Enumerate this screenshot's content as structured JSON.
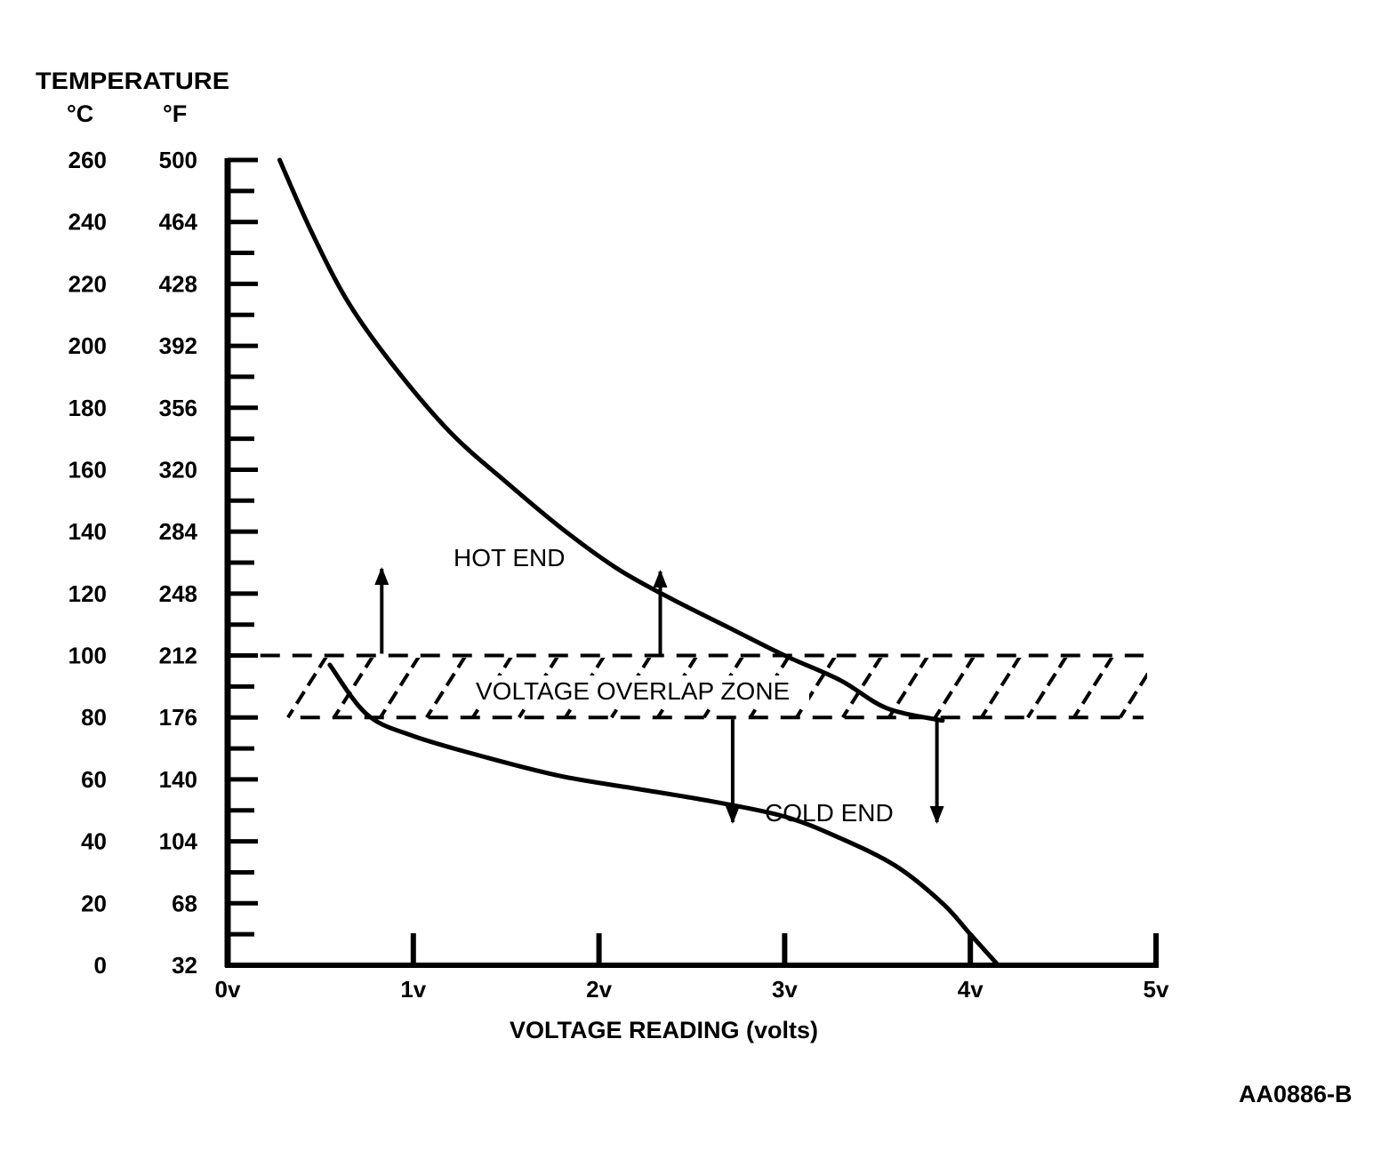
{
  "chart_data": {
    "type": "line",
    "y_axis_title": "TEMPERATURE",
    "y_unit_celsius": "°C",
    "y_unit_fahrenheit": "°F",
    "y_ticks_celsius": [
      "260",
      "240",
      "220",
      "200",
      "180",
      "160",
      "140",
      "120",
      "100",
      "80",
      "60",
      "40",
      "20",
      "0"
    ],
    "y_ticks_fahrenheit": [
      "500",
      "464",
      "428",
      "392",
      "356",
      "320",
      "284",
      "248",
      "212",
      "176",
      "140",
      "104",
      "68",
      "32"
    ],
    "xlabel": "VOLTAGE READING (volts)",
    "x_ticks": [
      "0v",
      "1v",
      "2v",
      "3v",
      "4v",
      "5v"
    ],
    "xlim": [
      0,
      5
    ],
    "ylim_celsius": [
      0,
      260
    ],
    "overlap_zone": {
      "label": "VOLTAGE OVERLAP ZONE",
      "c_min": 80,
      "c_max": 100,
      "x_min": 0.2,
      "x_max": 5.0
    },
    "series": [
      {
        "x": [
          0.28,
          0.45,
          0.65,
          0.9,
          1.2,
          1.5,
          1.8,
          2.1,
          2.4,
          2.7,
          3.0,
          3.3,
          3.55,
          3.85
        ],
        "values": [
          260,
          237,
          214,
          193,
          172,
          156,
          141,
          128,
          118,
          109,
          100,
          92,
          83,
          79
        ]
      },
      {
        "x": [
          0.55,
          0.75,
          1.0,
          1.4,
          1.8,
          2.2,
          2.6,
          3.0,
          3.3,
          3.6,
          3.85,
          4.0,
          4.15
        ],
        "values": [
          97,
          81,
          74,
          67,
          61,
          57,
          53,
          48,
          41,
          32,
          20,
          10,
          0
        ]
      }
    ],
    "annotations": {
      "hot_end": "HOT END",
      "cold_end": "COLD END"
    },
    "grid": false,
    "legend": "none"
  },
  "figure_id": "AA0886-B"
}
